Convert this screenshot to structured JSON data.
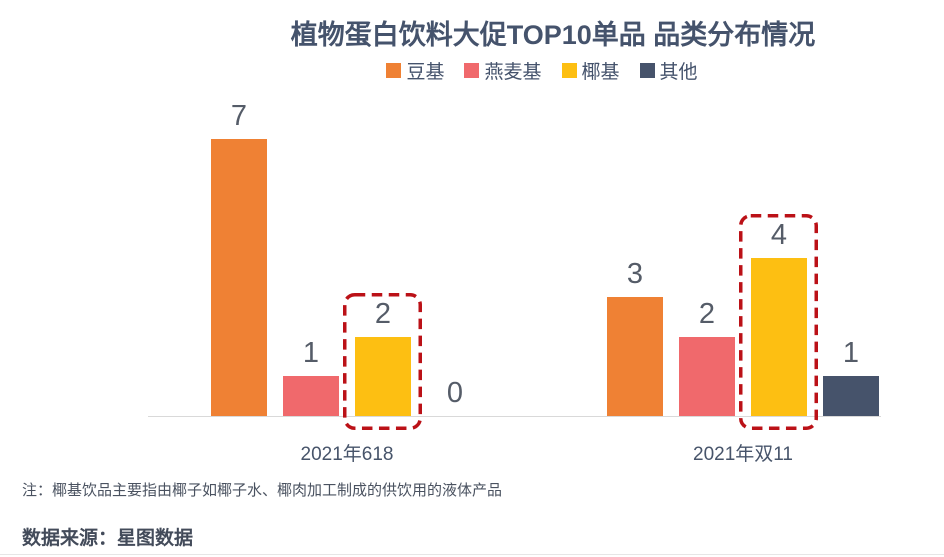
{
  "title": "植物蛋白饮料大促TOP10单品 品类分布情况",
  "note": "注：椰基饮品主要指由椰子如椰子水、椰肉加工制成的供饮用的液体产品",
  "source": "数据来源：星图数据",
  "chart_data": {
    "type": "bar",
    "title": "植物蛋白饮料大促TOP10单品 品类分布情况",
    "categories": [
      "2021年618",
      "2021年双11"
    ],
    "series": [
      {
        "name": "豆基",
        "color": "#EF8134",
        "values": [
          7,
          3
        ]
      },
      {
        "name": "燕麦基",
        "color": "#F0696C",
        "values": [
          1,
          2
        ]
      },
      {
        "name": "椰基",
        "color": "#FDBF12",
        "values": [
          2,
          4
        ]
      },
      {
        "name": "其他",
        "color": "#46536B",
        "values": [
          0,
          1
        ]
      }
    ],
    "ylim": [
      0,
      7.5
    ],
    "grid": false,
    "legend_position": "top",
    "value_labels": true,
    "highlights": [
      {
        "series": "椰基",
        "category": "2021年618"
      },
      {
        "series": "椰基",
        "category": "2021年双11"
      }
    ],
    "highlight_style": {
      "color": "#BB1117",
      "stroke": "dashed"
    }
  },
  "colors": {
    "title": "#45536C",
    "text": "#47546A",
    "axis": "#D9D9D9",
    "highlight": "#BB1117"
  }
}
